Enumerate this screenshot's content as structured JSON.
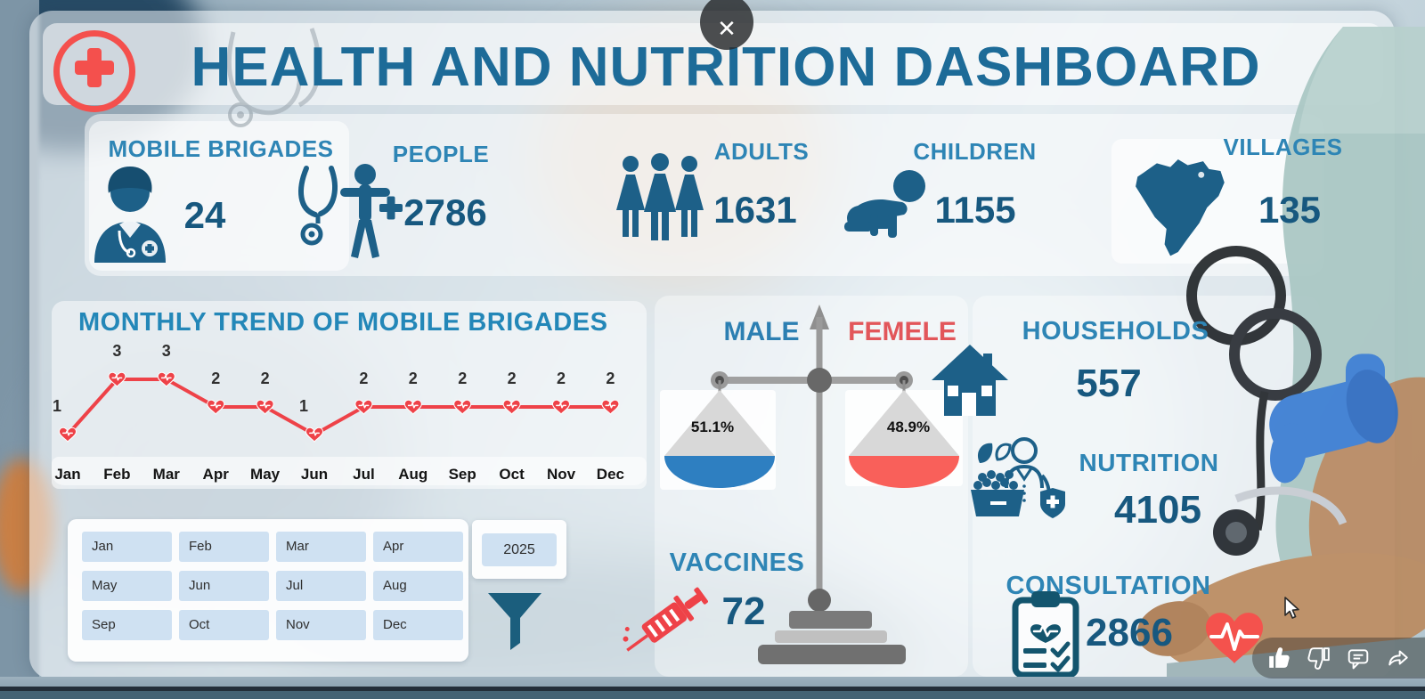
{
  "window": {
    "close_icon": "✕"
  },
  "header": {
    "title": "HEALTH AND NUTRITION DASHBOARD"
  },
  "stats": [
    {
      "label": "MOBILE BRIGADES",
      "value": "24",
      "icon": "doctor-icon"
    },
    {
      "label": "PEOPLE",
      "value": "2786",
      "icon": "person-stethoscope-icon"
    },
    {
      "label": "ADULTS",
      "value": "1631",
      "icon": "adults-group-icon"
    },
    {
      "label": "CHILDREN",
      "value": "1155",
      "icon": "crawling-baby-icon"
    },
    {
      "label": "VILLAGES",
      "value": "135",
      "icon": "brazil-map-icon"
    }
  ],
  "chart_data": {
    "type": "line",
    "title": "MONTHLY TREND OF MOBILE BRIGADES",
    "categories": [
      "Jan",
      "Feb",
      "Mar",
      "Apr",
      "May",
      "Jun",
      "Jul",
      "Aug",
      "Sep",
      "Oct",
      "Nov",
      "Dec"
    ],
    "values": [
      1,
      3,
      3,
      2,
      2,
      1,
      2,
      2,
      2,
      2,
      2,
      2
    ],
    "series_name": "Mobile Brigades",
    "line_color": "#ee4248",
    "marker": "heart",
    "data_labels": true,
    "ylim": [
      0,
      3.5
    ],
    "grid": false,
    "legend": "none"
  },
  "slicer": {
    "months": [
      "Jan",
      "Feb",
      "Mar",
      "Apr",
      "May",
      "Jun",
      "Jul",
      "Aug",
      "Sep",
      "Oct",
      "Nov",
      "Dec"
    ],
    "year": "2025",
    "filter_icon": "funnel-icon"
  },
  "gender_balance": {
    "male_label": "MALE",
    "female_label": "FEMELE",
    "male_value": "51.1%",
    "female_value": "48.9%",
    "male_color": "#2e7fc1",
    "female_color": "#f9605a"
  },
  "vaccines": {
    "label": "VACCINES",
    "value": "72",
    "icon": "syringe-icon"
  },
  "right_stats": [
    {
      "label": "HOUSEHOLDS",
      "value": "557",
      "icon": "house-icon"
    },
    {
      "label": "NUTRITION",
      "value": "4105",
      "icon": "nutrition-icon"
    },
    {
      "label": "CONSULTATION",
      "value": "2866",
      "icon": "clipboard-checklist-icon"
    }
  ],
  "extra_icons": [
    "heart-ecg-icon",
    "red-cross-logo",
    "stethoscope-photo"
  ],
  "video_controls": {
    "buttons": [
      {
        "name": "like",
        "icon": "thumbs-up-icon"
      },
      {
        "name": "dislike",
        "icon": "thumbs-down-icon"
      },
      {
        "name": "comment",
        "icon": "comment-icon"
      },
      {
        "name": "share",
        "icon": "share-icon"
      }
    ]
  },
  "colors": {
    "title_blue": "#1d6b98",
    "label_blue": "#2e85b5",
    "value_navy": "#17587f",
    "accent_red": "#ee4248",
    "icon_teal": "#1d6088",
    "slicer_bg": "#cfe1f2"
  }
}
